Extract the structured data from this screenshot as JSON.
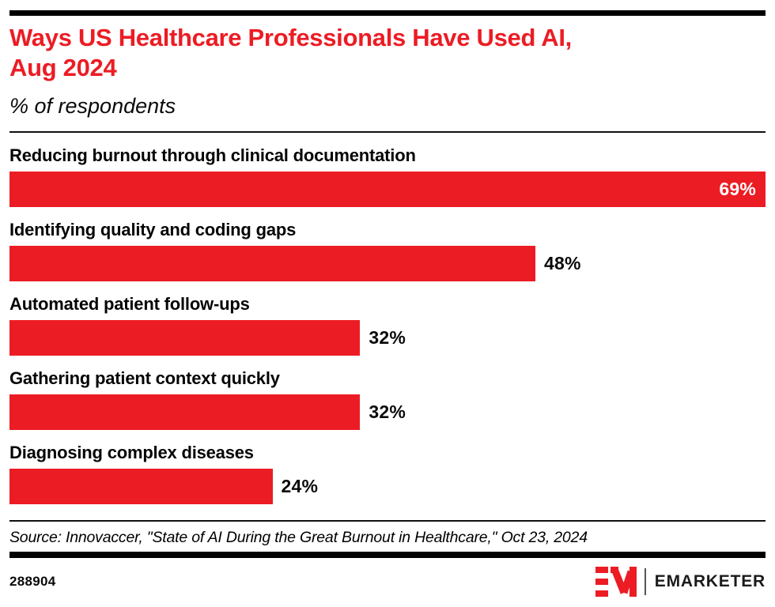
{
  "header": {
    "title_lines": [
      "Ways US Healthcare Professionals Have Used AI,",
      "Aug 2024"
    ],
    "subtitle": "% of respondents"
  },
  "chart_data": {
    "type": "bar",
    "orientation": "horizontal",
    "title": "Ways US Healthcare Professionals Have Used AI, Aug 2024",
    "unit_note": "% of respondents",
    "categories": [
      "Reducing burnout through clinical documentation",
      "Identifying quality and coding gaps",
      "Automated patient follow-ups",
      "Gathering patient context quickly",
      "Diagnosing complex diseases"
    ],
    "values": [
      69,
      48,
      32,
      32,
      24
    ],
    "value_labels": [
      "69%",
      "48%",
      "32%",
      "32%",
      "24%"
    ],
    "xlim": [
      0,
      69
    ],
    "grid": false,
    "legend": "none",
    "bar_color": "#EC1C24",
    "value_label_positions": [
      "inside",
      "outside",
      "outside",
      "outside",
      "outside"
    ]
  },
  "footer": {
    "source": "Source: Innovaccer, \"State of AI During the Great Burnout in Healthcare,\" Oct 23, 2024",
    "chart_id": "288904",
    "brand_name": "EMARKETER"
  },
  "colors": {
    "accent_red": "#EC1C24",
    "rule_black": "#000000",
    "inside_value_text": "#FFFFFF"
  }
}
